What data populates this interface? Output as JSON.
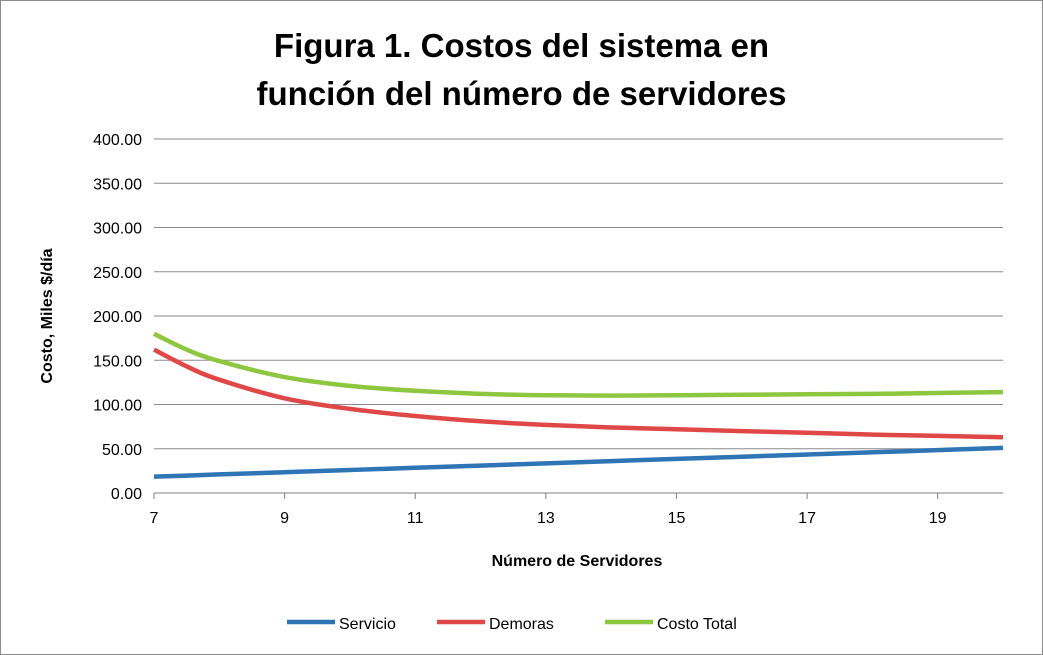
{
  "chart_data": {
    "type": "line",
    "title_line1": "Figura 1. Costos del sistema en",
    "title_line2": "función del número de servidores",
    "xlabel": "Número de Servidores",
    "ylabel": "Costo, Miles $/día",
    "xlim": [
      7,
      20
    ],
    "ylim": [
      0,
      400
    ],
    "x_ticks": [
      7,
      9,
      11,
      13,
      15,
      17,
      19
    ],
    "y_ticks": [
      "0.00",
      "50.00",
      "100.00",
      "150.00",
      "200.00",
      "250.00",
      "300.00",
      "350.00",
      "400.00"
    ],
    "grid": "horizontal",
    "legend_position": "bottom",
    "x": [
      7,
      7.5,
      8,
      9,
      10,
      11,
      12,
      13,
      14,
      15,
      16,
      17,
      18,
      19,
      20
    ],
    "series": [
      {
        "name": "Servicio",
        "color": "#2e75b6",
        "values": [
          18.5,
          19.7,
          21,
          23.5,
          26,
          28.5,
          31,
          33.5,
          36,
          38.5,
          41,
          43.5,
          46,
          48.5,
          51
        ]
      },
      {
        "name": "Demoras",
        "color": "#e04848",
        "values": [
          162,
          143,
          128,
          107,
          95,
          87,
          81,
          77,
          74,
          72,
          70,
          68,
          66,
          64.5,
          63
        ]
      },
      {
        "name": "Costo Total",
        "color": "#8dc63f",
        "values": [
          180,
          162,
          149,
          131,
          121,
          115.5,
          112,
          110.5,
          110,
          110.5,
          111,
          111.5,
          112,
          113,
          114
        ]
      }
    ]
  }
}
